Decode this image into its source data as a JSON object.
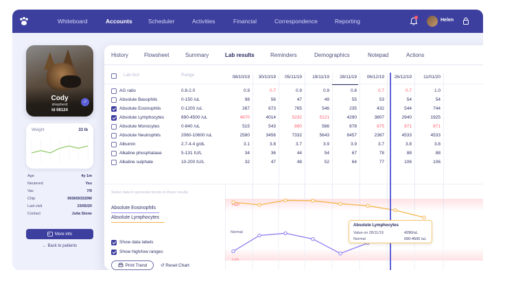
{
  "nav": {
    "items": [
      "Whiteboard",
      "Accounts",
      "Scheduler",
      "Activities",
      "Financial",
      "Correspondence",
      "Reporting"
    ],
    "active": "Accounts",
    "user": "Helen"
  },
  "pet": {
    "name": "Cody",
    "breed": "shepherd",
    "id": "Id 08124",
    "gender_symbol": "♂",
    "weight_label": "Weight",
    "weight_value": "33 lb",
    "weight_trend": [
      30,
      31,
      30,
      32,
      33,
      32,
      33
    ],
    "info": [
      {
        "key": "Age",
        "val": "4y 1m"
      },
      {
        "key": "Neutered",
        "val": "Yes"
      },
      {
        "key": "Vac",
        "val": "7/9"
      },
      {
        "key": "Chip",
        "val": "0936593320W"
      },
      {
        "key": "Last visit",
        "val": "23/05/20"
      },
      {
        "key": "Contact",
        "val": "Julia Stone"
      }
    ],
    "more_info": "More info",
    "back": "Back to patients"
  },
  "tabs": [
    "History",
    "Flowsheet",
    "Summary",
    "Lab results",
    "Reminders",
    "Demographics",
    "Notepad",
    "Actions"
  ],
  "active_tab": "Lab results",
  "table": {
    "header_lab": "Lab test",
    "header_range": "Range",
    "dates": [
      "08/10/19",
      "30/10/19",
      "05/11/19",
      "19/11/19",
      "28/11/19",
      "06/12/19",
      "26/12/19",
      "11/01/20"
    ],
    "selected_date_index": 4,
    "rows": [
      {
        "name": "AG ratio",
        "range": "0.8-2.0",
        "checked": false,
        "values": [
          "0.9",
          "0.7",
          "0.9",
          "0.9",
          "0.8",
          "0.7",
          "0.7",
          "1.0"
        ],
        "high": [
          1,
          5,
          6
        ]
      },
      {
        "name": "Absolute Basophils",
        "range": "0-150 /uL",
        "checked": false,
        "values": [
          "98",
          "56",
          "47",
          "49",
          "55",
          "53",
          "54",
          "54"
        ],
        "high": []
      },
      {
        "name": "Absolute Eosinophils",
        "range": "0-1200 /uL",
        "checked": true,
        "values": [
          "267",
          "673",
          "765",
          "546",
          "235",
          "432",
          "544",
          "744"
        ],
        "high": []
      },
      {
        "name": "Absolute Lymphocytes",
        "range": "690-4500 /uL",
        "checked": true,
        "values": [
          "4670",
          "4014",
          "5232",
          "5121",
          "4290",
          "3807",
          "2940",
          "1925"
        ],
        "high": [
          0,
          2,
          3
        ]
      },
      {
        "name": "Absolute Monocytes",
        "range": "0-840 /uL",
        "checked": false,
        "values": [
          "515",
          "543",
          "880",
          "566",
          "678",
          "875",
          "871",
          "871"
        ],
        "high": [
          2,
          5,
          6,
          7
        ]
      },
      {
        "name": "Absolute Neutrophils",
        "range": "2060-10600 /uL",
        "checked": false,
        "values": [
          "2580",
          "3456",
          "7332",
          "5643",
          "6457",
          "2367",
          "4533",
          "4533"
        ],
        "high": []
      },
      {
        "name": "Albumin",
        "range": "2.7-4.4 g/dL",
        "checked": false,
        "values": [
          "3.1",
          "3.8",
          "3.7",
          "3.9",
          "3.9",
          "3.7",
          "3.8",
          "3.8"
        ],
        "high": []
      },
      {
        "name": "Alkaline phosphatase",
        "range": "5-131 IU/L",
        "checked": false,
        "values": [
          "34",
          "36",
          "44",
          "54",
          "67",
          "78",
          "88",
          "88"
        ],
        "high": []
      },
      {
        "name": "Alkaline sulphate",
        "range": "10-200 IU/L",
        "checked": false,
        "values": [
          "32",
          "47",
          "48",
          "52",
          "64",
          "77",
          "106",
          "106"
        ],
        "high": []
      }
    ]
  },
  "chart_panel": {
    "hint": "Select data to generate trends in these results",
    "series_links": [
      "Absolute Eosinophils",
      "Absolute Lymphocytes"
    ],
    "show_labels": "Show data labels",
    "show_ranges": "Show high/low ranges",
    "print": "Print Trend",
    "reset": "Reset Chart"
  },
  "chart_data": {
    "type": "line",
    "bands": {
      "high": "High",
      "normal": "Normal",
      "low": "Low"
    },
    "x": [
      "08/10/19",
      "30/10/19",
      "05/11/19",
      "19/11/19",
      "28/11/19",
      "06/12/19",
      "26/12/19",
      "11/01/20"
    ],
    "series": [
      {
        "name": "Absolute Lymphocytes",
        "color": "#f5b44a",
        "values": [
          4670,
          4014,
          5232,
          5121,
          4290,
          3807,
          2940,
          1925
        ]
      },
      {
        "name": "Absolute Eosinophils",
        "color": "#8a7cf0",
        "values": [
          267,
          673,
          765,
          546,
          235,
          432,
          544,
          744
        ]
      }
    ],
    "tooltip": {
      "title": "Absolute Lymphocytes",
      "rows": [
        {
          "k": "Value on 28/11/19",
          "v": "4290/uL"
        },
        {
          "k": "Normal",
          "v": "690-4500 /uL"
        }
      ]
    }
  }
}
